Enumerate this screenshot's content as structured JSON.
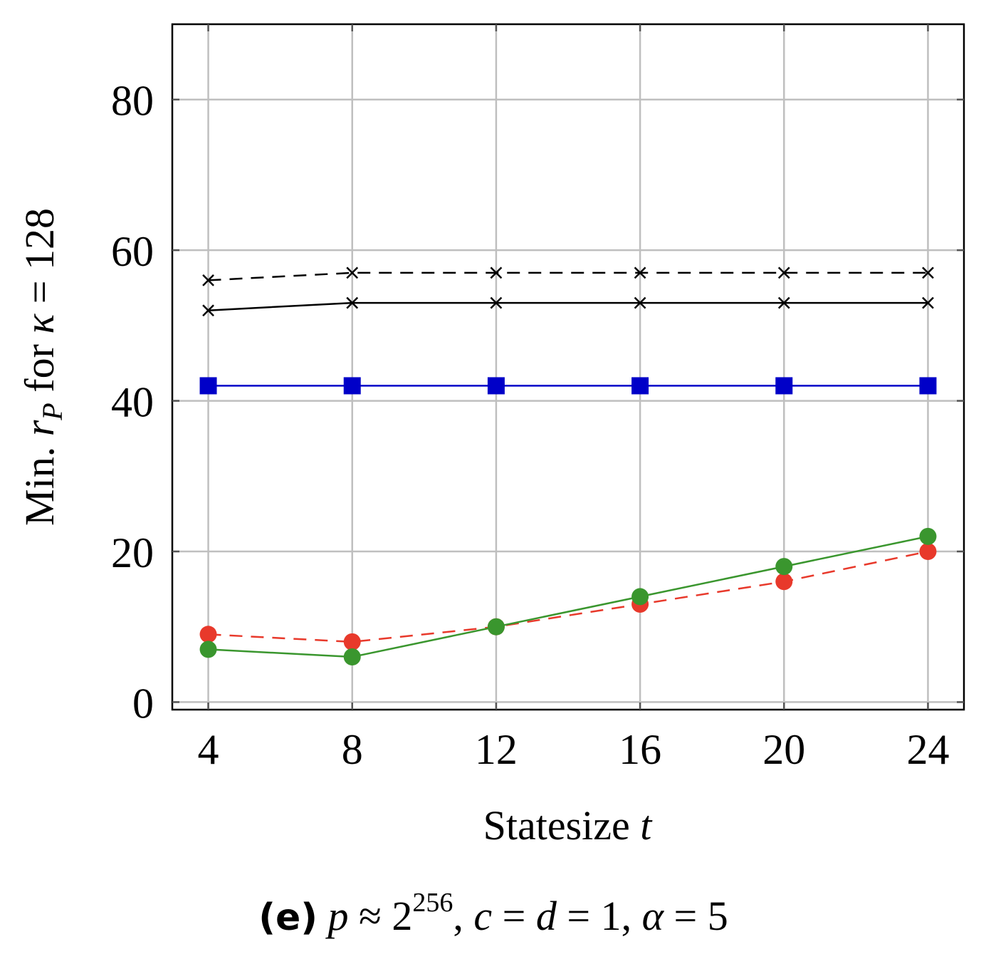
{
  "chart_data": {
    "type": "line",
    "x_label_text": "Statesize ",
    "x_label_var": "t",
    "y_label_prefix": "Min. ",
    "y_label_var": "r",
    "y_label_sub": "P",
    "y_label_mid": " for ",
    "y_label_kappa": "κ",
    "y_label_suffix": " = 128",
    "x_ticks": [
      "4",
      "8",
      "12",
      "16",
      "20",
      "24"
    ],
    "y_ticks": [
      "0",
      "20",
      "40",
      "60",
      "80"
    ],
    "xlim": [
      3,
      25
    ],
    "ylim": [
      -1,
      90
    ],
    "grid": true,
    "x": [
      4,
      8,
      12,
      16,
      20,
      24
    ],
    "series": [
      {
        "name": "black-dashed-cross",
        "values": [
          56,
          57,
          57,
          57,
          57,
          57
        ],
        "color": "#000000",
        "dash": true,
        "marker": "cross"
      },
      {
        "name": "black-solid-cross",
        "values": [
          52,
          53,
          53,
          53,
          53,
          53
        ],
        "color": "#000000",
        "dash": false,
        "marker": "cross"
      },
      {
        "name": "blue-square",
        "values": [
          42,
          42,
          42,
          42,
          42,
          42
        ],
        "color": "#0000c8",
        "dash": false,
        "marker": "square"
      },
      {
        "name": "red-dashed-circle",
        "values": [
          9,
          8,
          10,
          13,
          16,
          20
        ],
        "color": "#e8392b",
        "dash": true,
        "marker": "circle"
      },
      {
        "name": "green-solid-circle",
        "values": [
          7,
          6,
          10,
          14,
          18,
          22
        ],
        "color": "#3a962e",
        "dash": false,
        "marker": "circle"
      }
    ],
    "caption_tag": "(e)",
    "caption_p": "p",
    "caption_approx": " ≈ 2",
    "caption_exp": "256",
    "caption_rest1": ", ",
    "caption_c": "c",
    "caption_eq1": " = ",
    "caption_d": "d",
    "caption_eq2": " = 1, ",
    "caption_alpha": "α",
    "caption_eq3": " = 5"
  }
}
